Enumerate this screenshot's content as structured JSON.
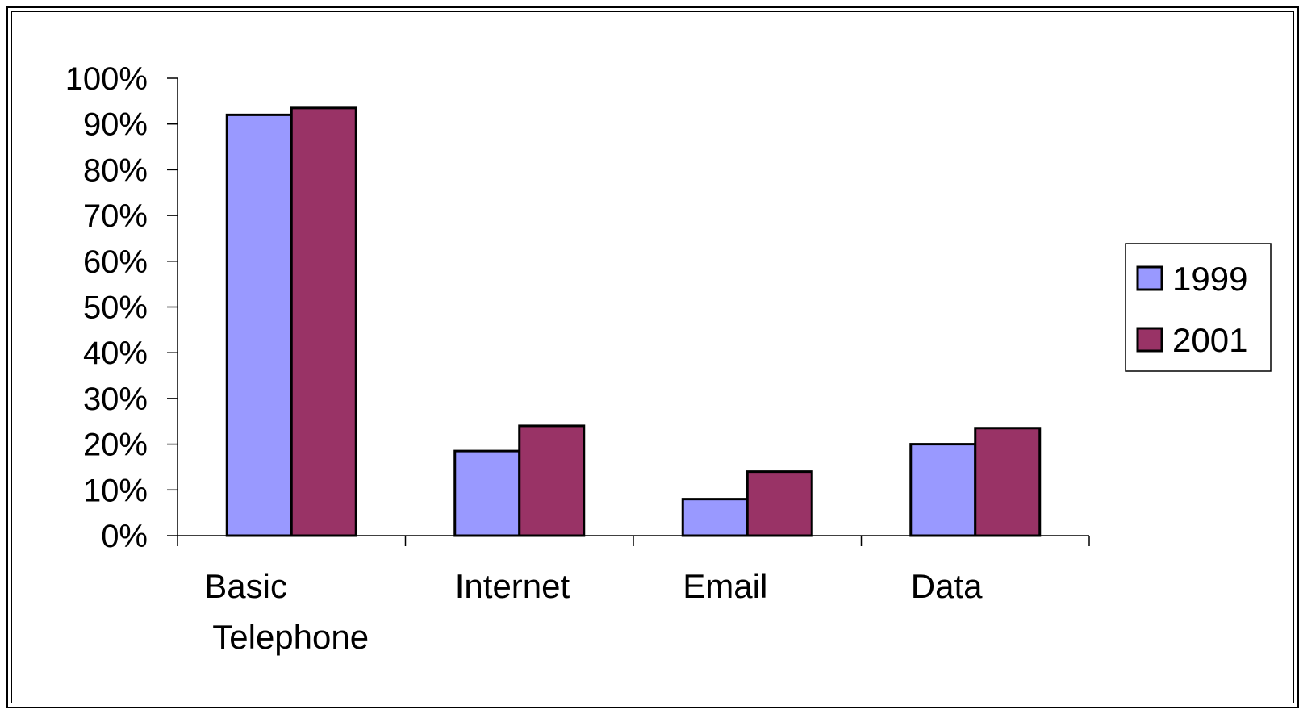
{
  "chart_data": {
    "type": "bar",
    "title": "",
    "xlabel": "",
    "ylabel": "",
    "categories": [
      [
        "Basic",
        "Telephone"
      ],
      [
        "Internet"
      ],
      [
        "Email"
      ],
      [
        "Data"
      ]
    ],
    "series": [
      {
        "name": "1999",
        "color": "#9999ff",
        "values": [
          92,
          18.5,
          8,
          20
        ]
      },
      {
        "name": "2001",
        "color": "#993366",
        "values": [
          93.5,
          24,
          14,
          23.5
        ]
      }
    ],
    "ylim": [
      0,
      100
    ],
    "yticks": [
      0,
      10,
      20,
      30,
      40,
      50,
      60,
      70,
      80,
      90,
      100
    ],
    "ytick_format": "percent",
    "grid": false,
    "legend_position": "right"
  }
}
